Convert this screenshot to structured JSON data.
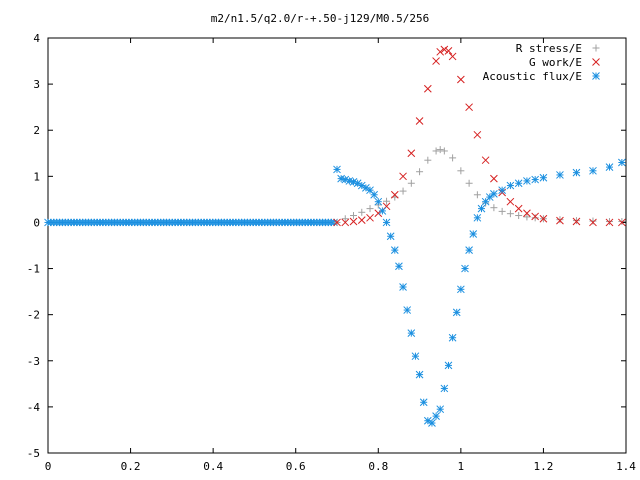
{
  "chart_data": {
    "type": "scatter",
    "title": "m2/n1.5/q2.0/r-+.50-j129/M0.5/256",
    "xlabel": "",
    "ylabel": "",
    "xlim": [
      0,
      1.4
    ],
    "ylim": [
      -5,
      4
    ],
    "x_ticks": [
      "0",
      "0.2",
      "0.4",
      "0.6",
      "0.8",
      "1",
      "1.2",
      "1.4"
    ],
    "y_ticks": [
      "4",
      "3",
      "2",
      "1",
      "0",
      "-1",
      "-2",
      "-3",
      "-4",
      "-5"
    ],
    "x_tick_values": [
      0,
      0.2,
      0.4,
      0.6,
      0.8,
      1.0,
      1.2,
      1.4
    ],
    "y_tick_values": [
      4,
      3,
      2,
      1,
      0,
      -1,
      -2,
      -3,
      -4,
      -5
    ],
    "grid": false,
    "legend_position": "top-right",
    "series": [
      {
        "name": "R stress/E",
        "marker": "plus",
        "color": "#a0a0a0",
        "x": [
          0.7,
          0.72,
          0.74,
          0.76,
          0.78,
          0.8,
          0.82,
          0.84,
          0.86,
          0.88,
          0.9,
          0.92,
          0.94,
          0.95,
          0.96,
          0.98,
          1.0,
          1.02,
          1.04,
          1.06,
          1.08,
          1.1,
          1.12,
          1.14,
          1.16,
          1.18,
          1.2,
          1.24,
          1.28,
          1.32,
          1.36,
          1.39
        ],
        "y": [
          0.0,
          0.08,
          0.15,
          0.22,
          0.3,
          0.38,
          0.46,
          0.55,
          0.68,
          0.85,
          1.1,
          1.35,
          1.55,
          1.58,
          1.55,
          1.4,
          1.12,
          0.85,
          0.6,
          0.42,
          0.32,
          0.24,
          0.19,
          0.15,
          0.12,
          0.1,
          0.08,
          0.06,
          0.04,
          0.03,
          0.02,
          0.02
        ]
      },
      {
        "name": "G work/E",
        "marker": "cross",
        "color": "#d62020",
        "x": [
          0.7,
          0.72,
          0.74,
          0.76,
          0.78,
          0.8,
          0.82,
          0.84,
          0.86,
          0.88,
          0.9,
          0.92,
          0.94,
          0.95,
          0.96,
          0.97,
          0.98,
          1.0,
          1.02,
          1.04,
          1.06,
          1.08,
          1.1,
          1.12,
          1.14,
          1.16,
          1.18,
          1.2,
          1.24,
          1.28,
          1.32,
          1.36,
          1.39
        ],
        "y": [
          0.0,
          0.0,
          0.02,
          0.05,
          0.1,
          0.2,
          0.35,
          0.6,
          1.0,
          1.5,
          2.2,
          2.9,
          3.5,
          3.7,
          3.75,
          3.72,
          3.6,
          3.1,
          2.5,
          1.9,
          1.35,
          0.95,
          0.65,
          0.45,
          0.3,
          0.2,
          0.13,
          0.08,
          0.04,
          0.02,
          0.0,
          0.0,
          0.0
        ]
      },
      {
        "name": "Acoustic flux/E",
        "marker": "star",
        "color": "#1a8fe0",
        "x": [
          0.7,
          0.71,
          0.72,
          0.73,
          0.74,
          0.75,
          0.76,
          0.77,
          0.78,
          0.79,
          0.8,
          0.81,
          0.82,
          0.83,
          0.84,
          0.85,
          0.86,
          0.87,
          0.88,
          0.89,
          0.9,
          0.91,
          0.92,
          0.93,
          0.94,
          0.95,
          0.96,
          0.97,
          0.98,
          0.99,
          1.0,
          1.01,
          1.02,
          1.03,
          1.04,
          1.05,
          1.06,
          1.07,
          1.08,
          1.1,
          1.12,
          1.14,
          1.16,
          1.18,
          1.2,
          1.24,
          1.28,
          1.32,
          1.36,
          1.39
        ],
        "y": [
          1.15,
          0.95,
          0.93,
          0.9,
          0.88,
          0.85,
          0.8,
          0.75,
          0.7,
          0.6,
          0.45,
          0.25,
          0.0,
          -0.3,
          -0.6,
          -0.95,
          -1.4,
          -1.9,
          -2.4,
          -2.9,
          -3.3,
          -3.9,
          -4.3,
          -4.35,
          -4.2,
          -4.05,
          -3.6,
          -3.1,
          -2.5,
          -1.95,
          -1.45,
          -1.0,
          -0.6,
          -0.25,
          0.1,
          0.3,
          0.45,
          0.55,
          0.62,
          0.7,
          0.8,
          0.85,
          0.9,
          0.93,
          0.97,
          1.03,
          1.08,
          1.12,
          1.2,
          1.3
        ]
      }
    ]
  }
}
